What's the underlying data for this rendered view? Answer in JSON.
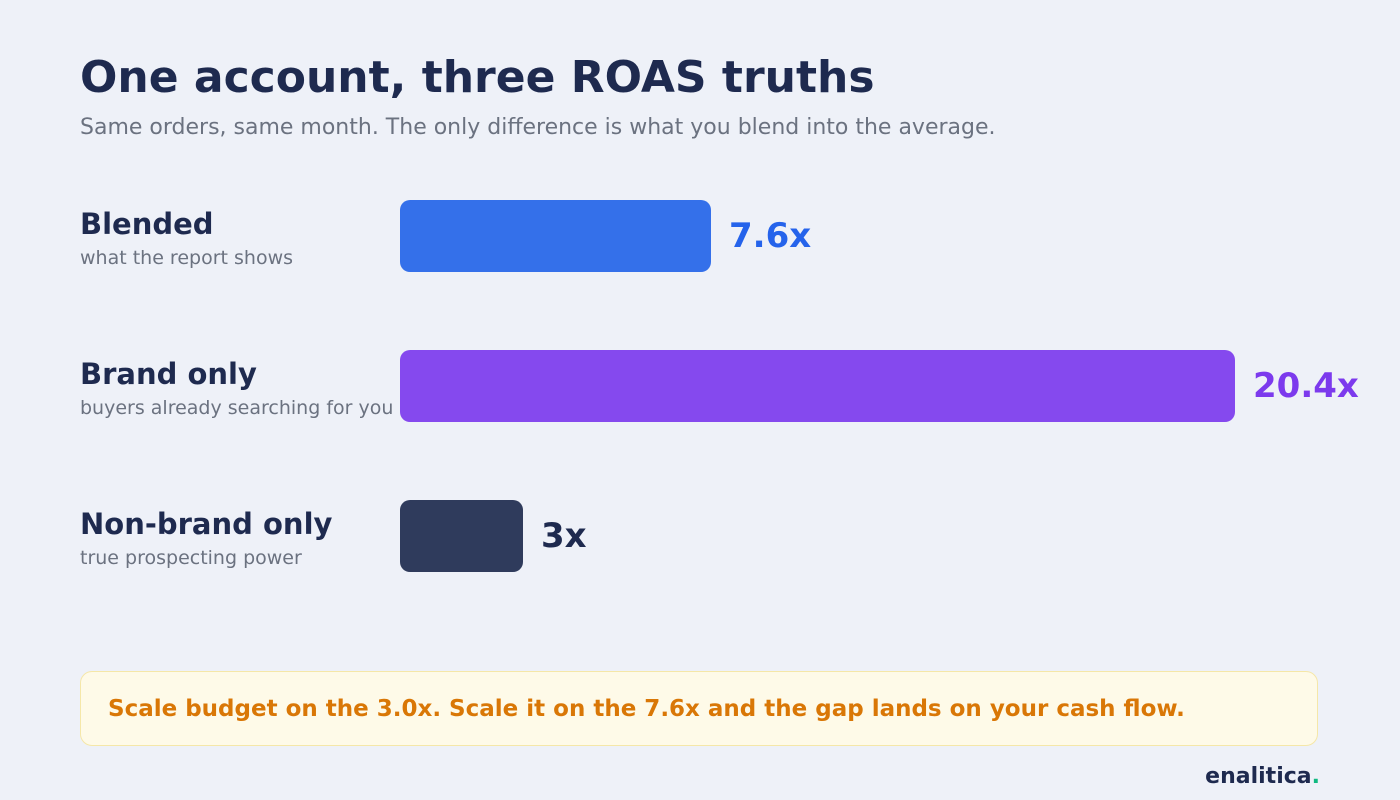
{
  "header": {
    "title": "One account, three ROAS truths",
    "subtitle": "Same orders, same month. The only difference is what you blend into the average."
  },
  "chart_data": {
    "type": "bar",
    "orientation": "horizontal",
    "title": "One account, three ROAS truths",
    "subtitle": "Same orders, same month. The only difference is what you blend into the average.",
    "categories": [
      "Blended",
      "Brand only",
      "Non-brand only"
    ],
    "descriptions": [
      "what the report shows",
      "buyers already searching for you",
      "true prospecting power"
    ],
    "values": [
      7.6,
      20.4,
      3
    ],
    "value_labels": [
      "7.6x",
      "20.4x",
      "3x"
    ],
    "colors": [
      "#3470ea",
      "#8549ee",
      "#2f3b5c"
    ],
    "label_colors": [
      "#2563eb",
      "#7c3aed",
      "#1e2a4f"
    ],
    "xlim": [
      0,
      20.4
    ],
    "grid": false,
    "legend": "none"
  },
  "callout": {
    "text": "Scale budget on the 3.0x. Scale it on the 7.6x and the gap lands on your cash flow."
  },
  "brand": {
    "name": "enalitica",
    "dot": ".",
    "dot_color": "#10b981"
  }
}
